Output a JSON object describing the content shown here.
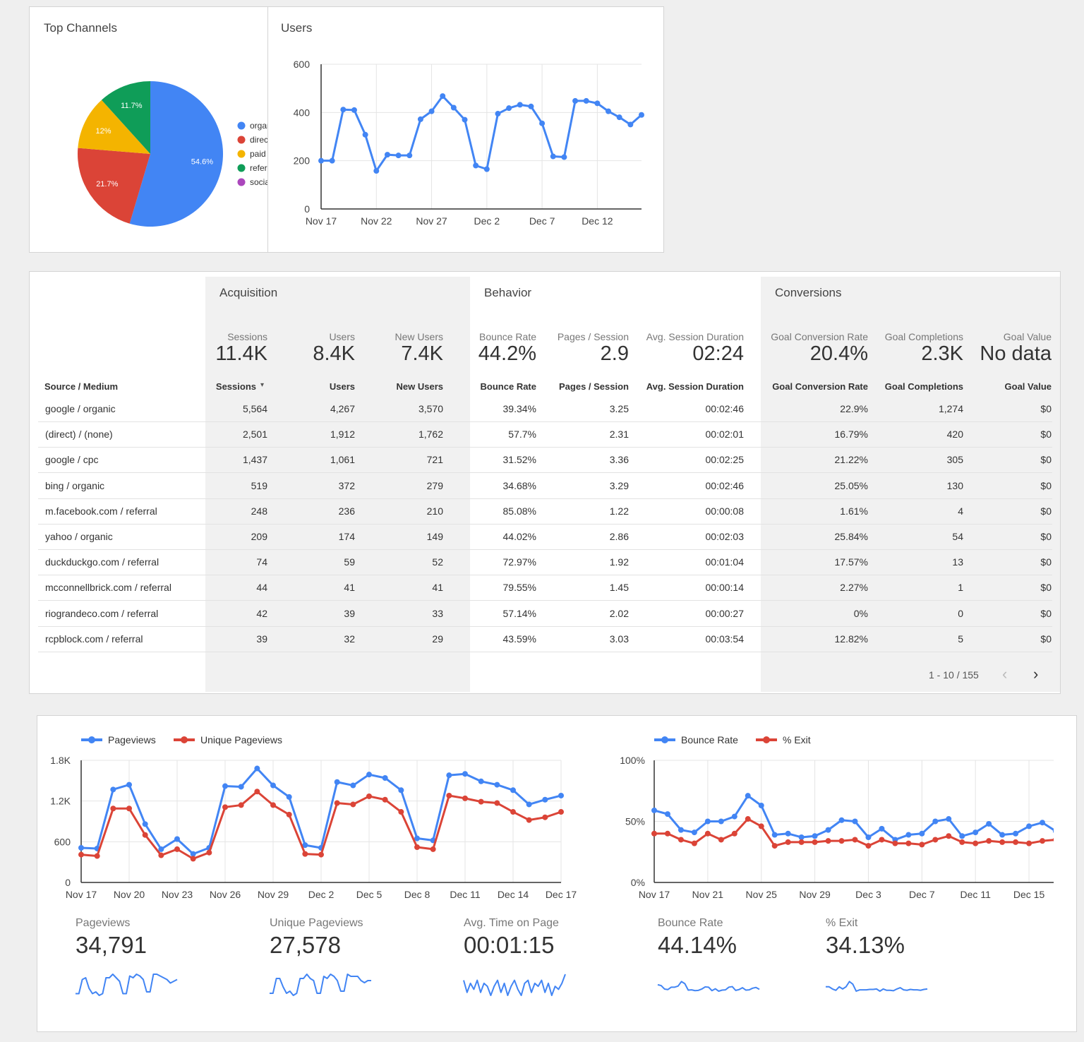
{
  "top_channels": {
    "title": "Top Channels",
    "chart_data": {
      "type": "pie",
      "slices": [
        {
          "label": "organic",
          "value": 54.6,
          "display": "54.6%",
          "color": "#4285f4"
        },
        {
          "label": "direct",
          "value": 21.7,
          "display": "21.7%",
          "color": "#db4437"
        },
        {
          "label": "paid",
          "value": 12.0,
          "display": "12%",
          "color": "#f4b400"
        },
        {
          "label": "referral",
          "value": 11.7,
          "display": "11.7%",
          "color": "#0f9d58"
        },
        {
          "label": "social",
          "value": 0,
          "display": "",
          "color": "#ab47bc"
        }
      ]
    }
  },
  "users_chart": {
    "title": "Users",
    "chart_data": {
      "type": "line",
      "x_ticks": [
        "Nov 17",
        "Nov 22",
        "Nov 27",
        "Dec 2",
        "Dec 7",
        "Dec 12"
      ],
      "y_ticks": [
        "0",
        "200",
        "400",
        "600"
      ],
      "ylim": [
        0,
        600
      ],
      "color": "#4285f4",
      "series": [
        {
          "values": [
            200,
            200,
            412,
            410,
            308,
            158,
            225,
            222,
            222,
            372,
            405,
            468,
            420,
            370,
            180,
            165,
            395,
            418,
            432,
            425,
            355,
            218,
            215,
            448,
            448,
            438,
            405,
            380,
            350,
            390
          ]
        }
      ]
    }
  },
  "table": {
    "groups": {
      "acquisition": "Acquisition",
      "behavior": "Behavior",
      "conversions": "Conversions"
    },
    "summary": [
      {
        "label": "Sessions",
        "value": "11.4K"
      },
      {
        "label": "Users",
        "value": "8.4K"
      },
      {
        "label": "New Users",
        "value": "7.4K"
      },
      {
        "label": "Bounce Rate",
        "value": "44.2%"
      },
      {
        "label": "Pages / Session",
        "value": "2.9"
      },
      {
        "label": "Avg. Session Duration",
        "value": "02:24"
      },
      {
        "label": "Goal Conversion Rate",
        "value": "20.4%"
      },
      {
        "label": "Goal Completions",
        "value": "2.3K"
      },
      {
        "label": "Goal Value",
        "value": "No data"
      }
    ],
    "headers": [
      "Source / Medium",
      "Sessions",
      "Users",
      "New Users",
      "Bounce Rate",
      "Pages / Session",
      "Avg. Session Duration",
      "Goal Conversion Rate",
      "Goal Completions",
      "Goal Value"
    ],
    "sort_indicator": "▾",
    "rows": [
      [
        "google / organic",
        "5,564",
        "4,267",
        "3,570",
        "39.34%",
        "3.25",
        "00:02:46",
        "22.9%",
        "1,274",
        "$0"
      ],
      [
        "(direct) / (none)",
        "2,501",
        "1,912",
        "1,762",
        "57.7%",
        "2.31",
        "00:02:01",
        "16.79%",
        "420",
        "$0"
      ],
      [
        "google / cpc",
        "1,437",
        "1,061",
        "721",
        "31.52%",
        "3.36",
        "00:02:25",
        "21.22%",
        "305",
        "$0"
      ],
      [
        "bing / organic",
        "519",
        "372",
        "279",
        "34.68%",
        "3.29",
        "00:02:46",
        "25.05%",
        "130",
        "$0"
      ],
      [
        "m.facebook.com / referral",
        "248",
        "236",
        "210",
        "85.08%",
        "1.22",
        "00:00:08",
        "1.61%",
        "4",
        "$0"
      ],
      [
        "yahoo / organic",
        "209",
        "174",
        "149",
        "44.02%",
        "2.86",
        "00:02:03",
        "25.84%",
        "54",
        "$0"
      ],
      [
        "duckduckgo.com / referral",
        "74",
        "59",
        "52",
        "72.97%",
        "1.92",
        "00:01:04",
        "17.57%",
        "13",
        "$0"
      ],
      [
        "mcconnellbrick.com / referral",
        "44",
        "41",
        "41",
        "79.55%",
        "1.45",
        "00:00:14",
        "2.27%",
        "1",
        "$0"
      ],
      [
        "riograndeco.com / referral",
        "42",
        "39",
        "33",
        "57.14%",
        "2.02",
        "00:00:27",
        "0%",
        "0",
        "$0"
      ],
      [
        "rcpblock.com / referral",
        "39",
        "32",
        "29",
        "43.59%",
        "3.03",
        "00:03:54",
        "12.82%",
        "5",
        "$0"
      ]
    ],
    "pagination": {
      "text": "1 - 10 / 155",
      "prev": "‹",
      "next": "›"
    }
  },
  "pageviews_chart": {
    "chart_data": {
      "type": "line",
      "x_ticks": [
        "Nov 17",
        "Nov 20",
        "Nov 23",
        "Nov 26",
        "Nov 29",
        "Dec 2",
        "Dec 5",
        "Dec 8",
        "Dec 11",
        "Dec 14",
        "Dec 17"
      ],
      "y_ticks": [
        "0",
        "600",
        "1.2K",
        "1.8K"
      ],
      "ylim": [
        0,
        1800
      ],
      "series": [
        {
          "name": "Pageviews",
          "color": "#4285f4",
          "values": [
            510,
            500,
            1370,
            1440,
            860,
            490,
            640,
            420,
            510,
            1420,
            1410,
            1680,
            1430,
            1260,
            550,
            510,
            1480,
            1430,
            1590,
            1540,
            1360,
            650,
            620,
            1580,
            1600,
            1490,
            1440,
            1360,
            1150,
            1220,
            1280
          ]
        },
        {
          "name": "Unique Pageviews",
          "color": "#db4437",
          "values": [
            410,
            390,
            1090,
            1090,
            700,
            400,
            490,
            350,
            440,
            1110,
            1140,
            1340,
            1140,
            1000,
            420,
            410,
            1170,
            1150,
            1270,
            1220,
            1040,
            520,
            490,
            1280,
            1240,
            1190,
            1170,
            1040,
            920,
            960,
            1040
          ]
        }
      ]
    }
  },
  "bounce_chart": {
    "chart_data": {
      "type": "line",
      "x_ticks": [
        "Nov 17",
        "Nov 21",
        "Nov 25",
        "Nov 29",
        "Dec 3",
        "Dec 7",
        "Dec 11",
        "Dec 15"
      ],
      "y_ticks": [
        "0%",
        "50%",
        "100%"
      ],
      "ylim": [
        0,
        100
      ],
      "series": [
        {
          "name": "Bounce Rate",
          "color": "#4285f4",
          "values": [
            59,
            56,
            43,
            41,
            50,
            50,
            54,
            71,
            63,
            39,
            40,
            37,
            38,
            43,
            51,
            50,
            37,
            44,
            35,
            39,
            40,
            50,
            52,
            38,
            41,
            48,
            39,
            40,
            46,
            49,
            42
          ]
        },
        {
          "name": "% Exit",
          "color": "#db4437",
          "values": [
            40,
            40,
            35,
            32,
            40,
            35,
            40,
            52,
            46,
            30,
            33,
            33,
            33,
            34,
            34,
            35,
            30,
            35,
            32,
            32,
            31,
            35,
            38,
            33,
            32,
            34,
            33,
            33,
            32,
            34,
            35
          ]
        }
      ]
    }
  },
  "metrics": [
    {
      "label": "Pageviews",
      "value": "34,791",
      "spark": [
        5,
        5,
        13,
        14,
        8,
        5,
        6,
        4,
        5,
        14,
        14,
        16,
        14,
        12,
        5,
        5,
        15,
        14,
        16,
        15,
        13,
        6,
        6,
        16,
        16,
        15,
        14,
        13,
        11,
        12,
        13
      ]
    },
    {
      "label": "Unique Pageviews",
      "value": "27,578",
      "spark": [
        4,
        4,
        11,
        11,
        7,
        4,
        5,
        3,
        4,
        11,
        11,
        13,
        11,
        10,
        4,
        4,
        12,
        11,
        13,
        12,
        10,
        5,
        5,
        13,
        12,
        12,
        12,
        10,
        9,
        10,
        10
      ]
    },
    {
      "label": "Avg. Time on Page",
      "value": "00:01:15",
      "spark": [
        10,
        6,
        9,
        7,
        10,
        6,
        9,
        8,
        5,
        8,
        10,
        6,
        9,
        5,
        8,
        10,
        7,
        5,
        9,
        10,
        6,
        9,
        8,
        10,
        6,
        9,
        5,
        8,
        7,
        9,
        12
      ]
    },
    {
      "label": "Bounce Rate",
      "value": "44.14%",
      "spark": [
        59,
        56,
        43,
        41,
        50,
        50,
        54,
        71,
        63,
        39,
        40,
        37,
        38,
        43,
        51,
        50,
        37,
        44,
        35,
        39,
        40,
        50,
        52,
        38,
        41,
        48,
        39,
        40,
        46,
        49,
        42
      ]
    },
    {
      "label": "% Exit",
      "value": "34.13%",
      "spark": [
        40,
        40,
        35,
        32,
        40,
        35,
        40,
        52,
        46,
        30,
        33,
        33,
        33,
        34,
        34,
        35,
        30,
        35,
        32,
        32,
        31,
        35,
        38,
        33,
        32,
        34,
        33,
        33,
        32,
        34,
        35
      ]
    }
  ]
}
